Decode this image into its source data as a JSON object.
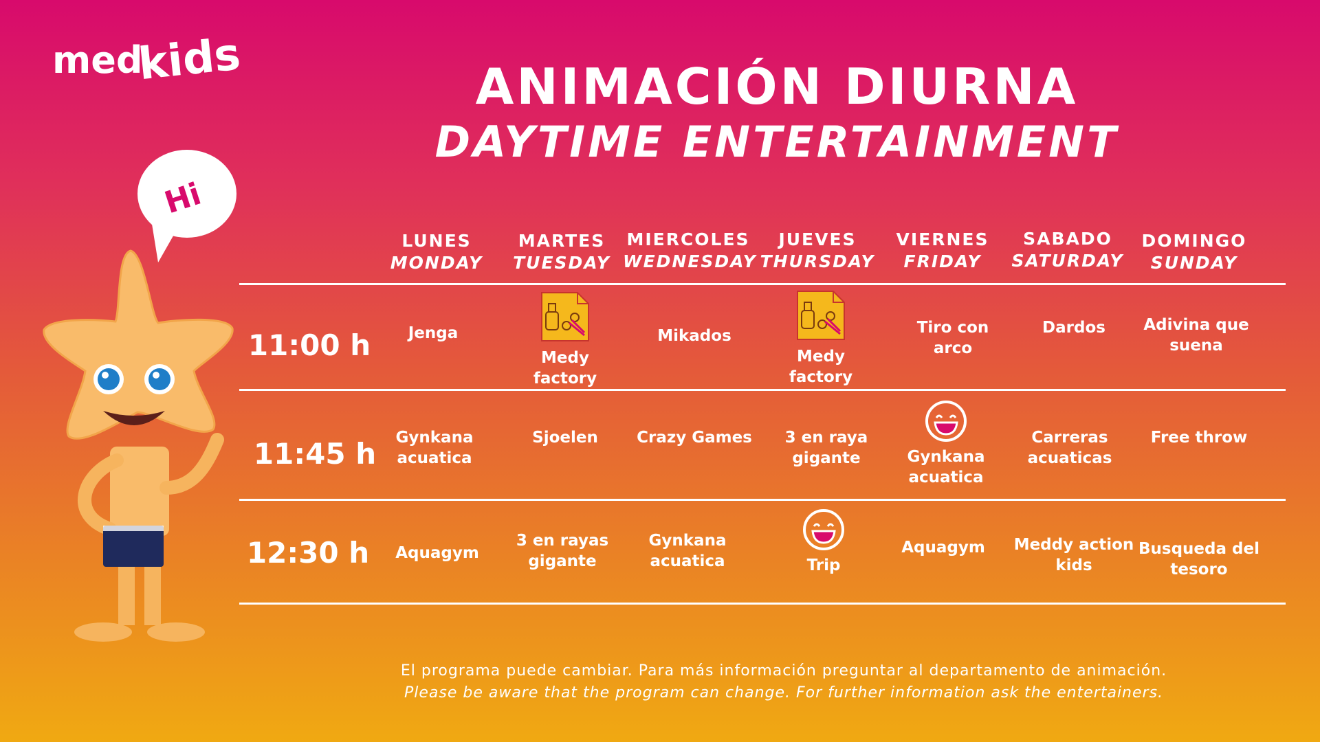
{
  "brand": {
    "logo_text_1": "med",
    "logo_text_2": "kids",
    "speech_bubble": "Hi"
  },
  "title": {
    "spanish": "ANIMACIÓN DIURNA",
    "english": "DAYTIME ENTERTAINMENT"
  },
  "days": [
    {
      "es": "LUNES",
      "en": "MONDAY"
    },
    {
      "es": "MARTES",
      "en": "TUESDAY"
    },
    {
      "es": "MIERCOLES",
      "en": "WEDNESDAY"
    },
    {
      "es": "JUEVES",
      "en": "THURSDAY"
    },
    {
      "es": "VIERNES",
      "en": "FRIDAY"
    },
    {
      "es": "SABADO",
      "en": "SATURDAY"
    },
    {
      "es": "DOMINGO",
      "en": "SUNDAY"
    }
  ],
  "rows": [
    {
      "time": "11:00 h",
      "cells": [
        {
          "line1": "Jenga",
          "line2": "",
          "icon": ""
        },
        {
          "line1": "Medy",
          "line2": "factory",
          "icon": "craft-icon"
        },
        {
          "line1": "Mikados",
          "line2": "",
          "icon": ""
        },
        {
          "line1": "Medy",
          "line2": "factory",
          "icon": "craft-icon"
        },
        {
          "line1": "Tiro con",
          "line2": "arco",
          "icon": ""
        },
        {
          "line1": "Dardos",
          "line2": "",
          "icon": ""
        },
        {
          "line1": "Adivina que",
          "line2": "suena",
          "icon": ""
        }
      ]
    },
    {
      "time": "11:45 h",
      "cells": [
        {
          "line1": "Gynkana",
          "line2": "acuatica",
          "icon": ""
        },
        {
          "line1": "Sjoelen",
          "line2": "",
          "icon": ""
        },
        {
          "line1": "Crazy Games",
          "line2": "",
          "icon": ""
        },
        {
          "line1": "3 en raya",
          "line2": "gigante",
          "icon": ""
        },
        {
          "line1": "Gynkana",
          "line2": "acuatica",
          "icon": "smiley-icon"
        },
        {
          "line1": "Carreras",
          "line2": "acuaticas",
          "icon": ""
        },
        {
          "line1": "Free throw",
          "line2": "",
          "icon": ""
        }
      ]
    },
    {
      "time": "12:30 h",
      "cells": [
        {
          "line1": "Aquagym",
          "line2": "",
          "icon": ""
        },
        {
          "line1": "3 en rayas",
          "line2": "gigante",
          "icon": ""
        },
        {
          "line1": "Gynkana",
          "line2": "acuatica",
          "icon": ""
        },
        {
          "line1": "Trip",
          "line2": "",
          "icon": "smiley-icon"
        },
        {
          "line1": "Aquagym",
          "line2": "",
          "icon": ""
        },
        {
          "line1": "Meddy action",
          "line2": "kids",
          "icon": ""
        },
        {
          "line1": "Busqueda del",
          "line2": "tesoro",
          "icon": ""
        }
      ]
    }
  ],
  "footer": {
    "spanish": "El programa puede cambiar. Para más información preguntar  al departamento de animación.",
    "english": "Please be aware that the program can change. For further information ask the entertainers."
  },
  "colors": {
    "craft_icon": "#f5b81c",
    "smiley_mouth": "#d80a6c"
  }
}
